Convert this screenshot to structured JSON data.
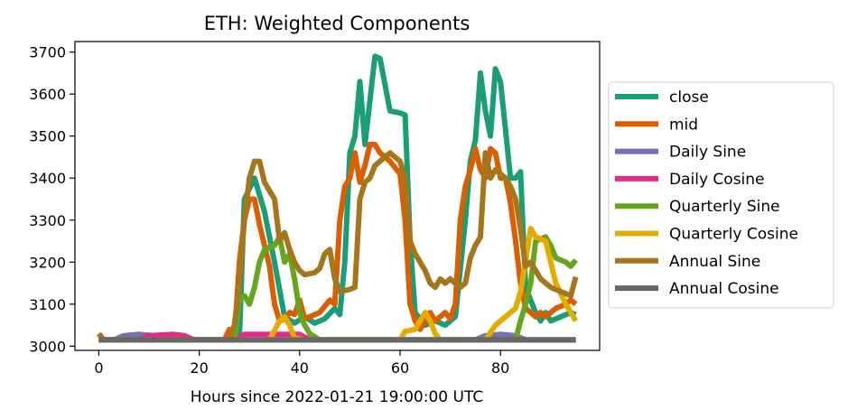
{
  "chart_data": {
    "type": "line",
    "title": "ETH: Weighted Components",
    "xlabel": "Hours since 2022-01-21 19:00:00 UTC",
    "ylabel": "",
    "xlim": [
      -4.75,
      99.75
    ],
    "ylim": [
      2990,
      3725
    ],
    "xticks": [
      0,
      20,
      40,
      60,
      80
    ],
    "yticks": [
      3000,
      3100,
      3200,
      3300,
      3400,
      3500,
      3600,
      3700
    ],
    "grid": false,
    "legend_position": "outside-right",
    "series": [
      {
        "name": "close",
        "color": "#1b9e77",
        "points": [
          [
            0,
            3015
          ],
          [
            26,
            3015
          ],
          [
            28,
            3020
          ],
          [
            29,
            3350
          ],
          [
            31,
            3400
          ],
          [
            33,
            3320
          ],
          [
            35,
            3200
          ],
          [
            37,
            3070
          ],
          [
            39,
            3055
          ],
          [
            41,
            3070
          ],
          [
            43,
            3055
          ],
          [
            45,
            3065
          ],
          [
            47,
            3090
          ],
          [
            48,
            3075
          ],
          [
            49,
            3200
          ],
          [
            50,
            3460
          ],
          [
            51,
            3500
          ],
          [
            52,
            3630
          ],
          [
            53,
            3480
          ],
          [
            55,
            3690
          ],
          [
            56,
            3685
          ],
          [
            58,
            3560
          ],
          [
            60,
            3555
          ],
          [
            61,
            3550
          ],
          [
            62,
            3250
          ],
          [
            63,
            3080
          ],
          [
            65,
            3050
          ],
          [
            67,
            3060
          ],
          [
            69,
            3050
          ],
          [
            71,
            3070
          ],
          [
            73,
            3300
          ],
          [
            74,
            3440
          ],
          [
            75,
            3490
          ],
          [
            76,
            3650
          ],
          [
            77,
            3560
          ],
          [
            78,
            3500
          ],
          [
            79,
            3660
          ],
          [
            80,
            3630
          ],
          [
            82,
            3400
          ],
          [
            83,
            3400
          ],
          [
            84,
            3415
          ],
          [
            85,
            3140
          ],
          [
            87,
            3080
          ],
          [
            88,
            3060
          ],
          [
            89,
            3080
          ],
          [
            90,
            3060
          ],
          [
            92,
            3070
          ],
          [
            94,
            3080
          ],
          [
            95,
            3075
          ]
        ]
      },
      {
        "name": "mid",
        "color": "#d95f02",
        "points": [
          [
            0,
            3015
          ],
          [
            25,
            3015
          ],
          [
            26,
            3040
          ],
          [
            27,
            3020
          ],
          [
            28,
            3200
          ],
          [
            29,
            3300
          ],
          [
            30,
            3350
          ],
          [
            31,
            3350
          ],
          [
            32,
            3290
          ],
          [
            34,
            3190
          ],
          [
            35,
            3100
          ],
          [
            36,
            3060
          ],
          [
            37,
            3065
          ],
          [
            38,
            3080
          ],
          [
            39,
            3075
          ],
          [
            40,
            3110
          ],
          [
            41,
            3065
          ],
          [
            42,
            3070
          ],
          [
            44,
            3080
          ],
          [
            46,
            3110
          ],
          [
            47,
            3100
          ],
          [
            48,
            3300
          ],
          [
            49,
            3380
          ],
          [
            50,
            3400
          ],
          [
            51,
            3460
          ],
          [
            52,
            3390
          ],
          [
            53,
            3430
          ],
          [
            54,
            3480
          ],
          [
            55,
            3480
          ],
          [
            56,
            3460
          ],
          [
            58,
            3440
          ],
          [
            60,
            3410
          ],
          [
            61,
            3300
          ],
          [
            62,
            3100
          ],
          [
            63,
            3060
          ],
          [
            64,
            3040
          ],
          [
            65,
            3060
          ],
          [
            66,
            3080
          ],
          [
            67,
            3060
          ],
          [
            68,
            3070
          ],
          [
            69,
            3080
          ],
          [
            70,
            3065
          ],
          [
            71,
            3100
          ],
          [
            72,
            3300
          ],
          [
            73,
            3380
          ],
          [
            74,
            3420
          ],
          [
            75,
            3470
          ],
          [
            76,
            3420
          ],
          [
            77,
            3400
          ],
          [
            78,
            3470
          ],
          [
            79,
            3460
          ],
          [
            80,
            3400
          ],
          [
            81,
            3400
          ],
          [
            82,
            3340
          ],
          [
            83,
            3250
          ],
          [
            84,
            3150
          ],
          [
            85,
            3090
          ],
          [
            86,
            3080
          ],
          [
            87,
            3070
          ],
          [
            88,
            3080
          ],
          [
            89,
            3070
          ],
          [
            91,
            3090
          ],
          [
            93,
            3100
          ],
          [
            94,
            3110
          ],
          [
            95,
            3100
          ]
        ]
      },
      {
        "name": "Daily Sine",
        "color": "#7570b3",
        "points": [
          [
            0,
            3015
          ],
          [
            3,
            3015
          ],
          [
            5,
            3025
          ],
          [
            8,
            3028
          ],
          [
            11,
            3025
          ],
          [
            13,
            3015
          ],
          [
            75,
            3015
          ],
          [
            77,
            3025
          ],
          [
            80,
            3028
          ],
          [
            83,
            3025
          ],
          [
            85,
            3015
          ],
          [
            95,
            3015
          ]
        ]
      },
      {
        "name": "Daily Cosine",
        "color": "#e7298a",
        "points": [
          [
            0,
            3015
          ],
          [
            8,
            3015
          ],
          [
            10,
            3025
          ],
          [
            15,
            3028
          ],
          [
            17,
            3025
          ],
          [
            19,
            3015
          ],
          [
            27,
            3015
          ],
          [
            29,
            3028
          ],
          [
            40,
            3028
          ],
          [
            42,
            3015
          ],
          [
            95,
            3015
          ]
        ]
      },
      {
        "name": "Quarterly Sine",
        "color": "#66a61e",
        "points": [
          [
            0,
            3015
          ],
          [
            27,
            3015
          ],
          [
            28,
            3110
          ],
          [
            29,
            3120
          ],
          [
            30,
            3100
          ],
          [
            31,
            3140
          ],
          [
            32,
            3200
          ],
          [
            33,
            3230
          ],
          [
            35,
            3240
          ],
          [
            36,
            3260
          ],
          [
            37,
            3200
          ],
          [
            38,
            3220
          ],
          [
            39,
            3160
          ],
          [
            40,
            3080
          ],
          [
            41,
            3050
          ],
          [
            42,
            3030
          ],
          [
            44,
            3015
          ],
          [
            83,
            3015
          ],
          [
            84,
            3060
          ],
          [
            85,
            3100
          ],
          [
            86,
            3150
          ],
          [
            87,
            3250
          ],
          [
            89,
            3260
          ],
          [
            90,
            3240
          ],
          [
            91,
            3210
          ],
          [
            93,
            3200
          ],
          [
            94,
            3190
          ],
          [
            95,
            3205
          ]
        ]
      },
      {
        "name": "Quarterly Cosine",
        "color": "#e6ab02",
        "points": [
          [
            0,
            3015
          ],
          [
            34,
            3015
          ],
          [
            36,
            3060
          ],
          [
            37,
            3070
          ],
          [
            38,
            3050
          ],
          [
            39,
            3020
          ],
          [
            41,
            3015
          ],
          [
            60,
            3015
          ],
          [
            61,
            3035
          ],
          [
            63,
            3040
          ],
          [
            64,
            3060
          ],
          [
            65,
            3080
          ],
          [
            66,
            3060
          ],
          [
            67,
            3030
          ],
          [
            68,
            3015
          ],
          [
            77,
            3015
          ],
          [
            79,
            3050
          ],
          [
            80,
            3060
          ],
          [
            82,
            3080
          ],
          [
            83,
            3090
          ],
          [
            84,
            3130
          ],
          [
            85,
            3200
          ],
          [
            86,
            3280
          ],
          [
            87,
            3260
          ],
          [
            89,
            3250
          ],
          [
            90,
            3200
          ],
          [
            91,
            3150
          ],
          [
            93,
            3100
          ],
          [
            95,
            3060
          ]
        ]
      },
      {
        "name": "Annual Sine",
        "color": "#a6761d",
        "points": [
          [
            0,
            3030
          ],
          [
            1,
            3015
          ],
          [
            26,
            3015
          ],
          [
            27,
            3050
          ],
          [
            28,
            3150
          ],
          [
            29,
            3300
          ],
          [
            30,
            3400
          ],
          [
            31,
            3440
          ],
          [
            32,
            3440
          ],
          [
            33,
            3390
          ],
          [
            34,
            3370
          ],
          [
            35,
            3350
          ],
          [
            36,
            3250
          ],
          [
            37,
            3270
          ],
          [
            38,
            3230
          ],
          [
            39,
            3200
          ],
          [
            40,
            3180
          ],
          [
            41,
            3170
          ],
          [
            43,
            3175
          ],
          [
            44,
            3185
          ],
          [
            45,
            3220
          ],
          [
            46,
            3230
          ],
          [
            47,
            3160
          ],
          [
            48,
            3130
          ],
          [
            50,
            3135
          ],
          [
            51,
            3140
          ],
          [
            52,
            3350
          ],
          [
            53,
            3390
          ],
          [
            54,
            3400
          ],
          [
            55,
            3430
          ],
          [
            56,
            3440
          ],
          [
            57,
            3450
          ],
          [
            58,
            3460
          ],
          [
            59,
            3450
          ],
          [
            60,
            3440
          ],
          [
            61,
            3400
          ],
          [
            62,
            3250
          ],
          [
            63,
            3220
          ],
          [
            64,
            3200
          ],
          [
            65,
            3180
          ],
          [
            66,
            3150
          ],
          [
            67,
            3140
          ],
          [
            68,
            3160
          ],
          [
            69,
            3150
          ],
          [
            70,
            3160
          ],
          [
            72,
            3140
          ],
          [
            73,
            3150
          ],
          [
            74,
            3210
          ],
          [
            75,
            3240
          ],
          [
            76,
            3260
          ],
          [
            77,
            3460
          ],
          [
            78,
            3400
          ],
          [
            79,
            3420
          ],
          [
            80,
            3410
          ],
          [
            81,
            3400
          ],
          [
            82,
            3380
          ],
          [
            83,
            3350
          ],
          [
            84,
            3280
          ],
          [
            85,
            3190
          ],
          [
            86,
            3200
          ],
          [
            88,
            3160
          ],
          [
            90,
            3140
          ],
          [
            92,
            3130
          ],
          [
            94,
            3120
          ],
          [
            95,
            3165
          ]
        ]
      },
      {
        "name": "Annual Cosine",
        "color": "#666666",
        "points": [
          [
            0,
            3015
          ],
          [
            95,
            3015
          ]
        ]
      }
    ]
  }
}
